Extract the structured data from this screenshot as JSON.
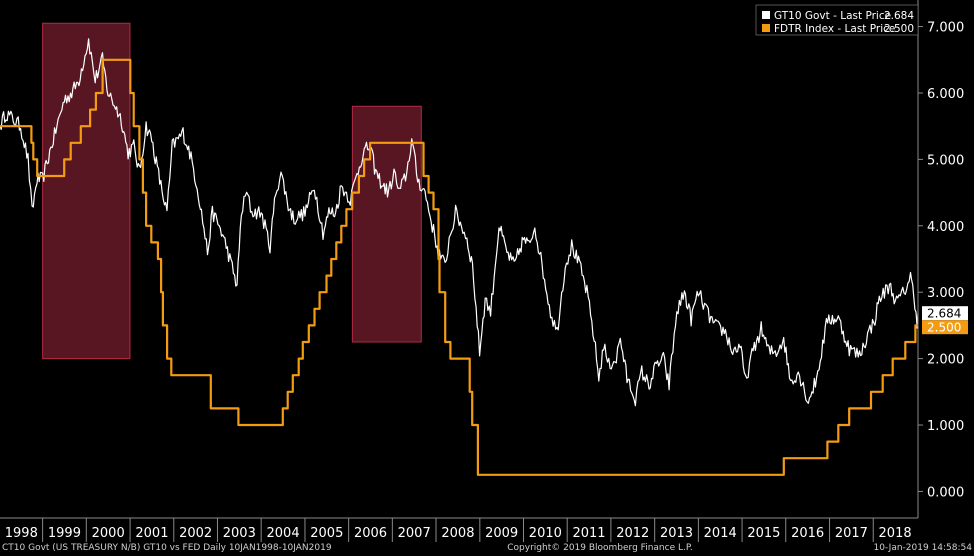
{
  "chart_data": {
    "type": "line",
    "title": "",
    "xlabel": "",
    "ylabel": "",
    "x_range": [
      "1998-01-10",
      "2019-01-10"
    ],
    "ylim": [
      -0.4,
      7.4
    ],
    "y_ticks": [
      "0.000",
      "1.000",
      "2.000",
      "3.000",
      "4.000",
      "5.000",
      "6.000",
      "7.000"
    ],
    "x_ticks": [
      "1998",
      "1999",
      "2000",
      "2001",
      "2002",
      "2003",
      "2004",
      "2005",
      "2006",
      "2007",
      "2008",
      "2009",
      "2010",
      "2011",
      "2012",
      "2013",
      "2014",
      "2015",
      "2016",
      "2017",
      "2018"
    ],
    "grid": false,
    "legend_position": "top-right",
    "background": "#000000",
    "series": [
      {
        "name": "GT10 Govt - Last Price",
        "last_value": "2.684",
        "color": "#ffffff",
        "points": [
          [
            "1998-01-10",
            5.5
          ],
          [
            "1998-03-01",
            5.7
          ],
          [
            "1998-05-01",
            5.6
          ],
          [
            "1998-07-01",
            5.5
          ],
          [
            "1998-09-01",
            5.0
          ],
          [
            "1998-10-05",
            4.2
          ],
          [
            "1998-11-15",
            4.7
          ],
          [
            "1999-01-01",
            4.7
          ],
          [
            "1999-03-01",
            5.1
          ],
          [
            "1999-05-01",
            5.5
          ],
          [
            "1999-07-01",
            5.9
          ],
          [
            "1999-09-01",
            6.0
          ],
          [
            "1999-11-01",
            6.2
          ],
          [
            "2000-01-20",
            6.8
          ],
          [
            "2000-03-15",
            6.2
          ],
          [
            "2000-05-15",
            6.5
          ],
          [
            "2000-07-01",
            6.0
          ],
          [
            "2000-09-01",
            5.8
          ],
          [
            "2000-10-20",
            5.6
          ],
          [
            "2000-12-15",
            5.1
          ],
          [
            "2001-02-01",
            5.2
          ],
          [
            "2001-03-20",
            4.8
          ],
          [
            "2001-05-15",
            5.5
          ],
          [
            "2001-07-01",
            5.3
          ],
          [
            "2001-09-15",
            4.6
          ],
          [
            "2001-11-05",
            4.2
          ],
          [
            "2001-12-20",
            5.2
          ],
          [
            "2002-03-20",
            5.4
          ],
          [
            "2002-05-15",
            5.1
          ],
          [
            "2002-07-15",
            4.6
          ],
          [
            "2002-08-20",
            4.2
          ],
          [
            "2002-10-10",
            3.6
          ],
          [
            "2002-11-20",
            4.2
          ],
          [
            "2003-01-15",
            4.0
          ],
          [
            "2003-03-15",
            3.7
          ],
          [
            "2003-06-13",
            3.1
          ],
          [
            "2003-07-20",
            4.2
          ],
          [
            "2003-09-01",
            4.5
          ],
          [
            "2003-10-15",
            4.2
          ],
          [
            "2004-01-01",
            4.2
          ],
          [
            "2004-03-15",
            3.7
          ],
          [
            "2004-05-01",
            4.5
          ],
          [
            "2004-06-15",
            4.8
          ],
          [
            "2004-08-15",
            4.3
          ],
          [
            "2004-10-01",
            4.1
          ],
          [
            "2005-01-01",
            4.2
          ],
          [
            "2005-03-20",
            4.6
          ],
          [
            "2005-06-01",
            3.9
          ],
          [
            "2005-07-20",
            4.2
          ],
          [
            "2005-09-15",
            4.2
          ],
          [
            "2005-11-01",
            4.6
          ],
          [
            "2006-01-15",
            4.4
          ],
          [
            "2006-03-01",
            4.7
          ],
          [
            "2006-05-01",
            5.1
          ],
          [
            "2006-06-28",
            5.2
          ],
          [
            "2006-08-15",
            4.8
          ],
          [
            "2006-10-15",
            4.6
          ],
          [
            "2006-12-01",
            4.5
          ],
          [
            "2007-01-15",
            4.8
          ],
          [
            "2007-03-01",
            4.5
          ],
          [
            "2007-05-01",
            4.8
          ],
          [
            "2007-06-12",
            5.3
          ],
          [
            "2007-08-01",
            4.7
          ],
          [
            "2007-10-01",
            4.5
          ],
          [
            "2007-12-01",
            4.0
          ],
          [
            "2008-01-20",
            3.6
          ],
          [
            "2008-03-17",
            3.4
          ],
          [
            "2008-04-20",
            3.8
          ],
          [
            "2008-06-13",
            4.2
          ],
          [
            "2008-08-01",
            4.0
          ],
          [
            "2008-09-15",
            3.8
          ],
          [
            "2008-11-01",
            3.4
          ],
          [
            "2008-12-30",
            2.1
          ],
          [
            "2009-02-15",
            2.9
          ],
          [
            "2009-04-01",
            2.7
          ],
          [
            "2009-06-10",
            4.0
          ],
          [
            "2009-08-15",
            3.6
          ],
          [
            "2009-10-15",
            3.4
          ],
          [
            "2009-12-31",
            3.8
          ],
          [
            "2010-02-15",
            3.7
          ],
          [
            "2010-04-05",
            4.0
          ],
          [
            "2010-06-15",
            3.3
          ],
          [
            "2010-08-15",
            2.7
          ],
          [
            "2010-10-08",
            2.4
          ],
          [
            "2010-12-15",
            3.4
          ],
          [
            "2011-02-08",
            3.7
          ],
          [
            "2011-04-15",
            3.4
          ],
          [
            "2011-06-15",
            3.0
          ],
          [
            "2011-08-15",
            2.3
          ],
          [
            "2011-09-22",
            1.7
          ],
          [
            "2011-11-01",
            2.2
          ],
          [
            "2011-12-15",
            1.9
          ],
          [
            "2012-02-15",
            2.0
          ],
          [
            "2012-03-20",
            2.3
          ],
          [
            "2012-05-15",
            1.7
          ],
          [
            "2012-07-24",
            1.4
          ],
          [
            "2012-09-15",
            1.8
          ],
          [
            "2012-11-15",
            1.6
          ],
          [
            "2013-01-15",
            1.9
          ],
          [
            "2013-03-15",
            2.0
          ],
          [
            "2013-05-01",
            1.6
          ],
          [
            "2013-07-05",
            2.7
          ],
          [
            "2013-09-06",
            3.0
          ],
          [
            "2013-11-01",
            2.6
          ],
          [
            "2013-12-31",
            3.0
          ],
          [
            "2014-03-15",
            2.7
          ],
          [
            "2014-05-15",
            2.5
          ],
          [
            "2014-08-15",
            2.4
          ],
          [
            "2014-10-15",
            2.1
          ],
          [
            "2014-12-15",
            2.2
          ],
          [
            "2015-01-30",
            1.65
          ],
          [
            "2015-03-15",
            2.0
          ],
          [
            "2015-06-10",
            2.45
          ],
          [
            "2015-08-15",
            2.1
          ],
          [
            "2015-10-15",
            2.1
          ],
          [
            "2015-12-15",
            2.3
          ],
          [
            "2016-02-11",
            1.65
          ],
          [
            "2016-04-15",
            1.8
          ],
          [
            "2016-07-08",
            1.36
          ],
          [
            "2016-09-15",
            1.7
          ],
          [
            "2016-11-15",
            2.3
          ],
          [
            "2016-12-16",
            2.6
          ],
          [
            "2017-03-15",
            2.6
          ],
          [
            "2017-06-15",
            2.15
          ],
          [
            "2017-09-08",
            2.05
          ],
          [
            "2017-11-15",
            2.35
          ],
          [
            "2018-01-15",
            2.6
          ],
          [
            "2018-02-21",
            2.9
          ],
          [
            "2018-05-17",
            3.1
          ],
          [
            "2018-07-15",
            2.85
          ],
          [
            "2018-09-15",
            3.0
          ],
          [
            "2018-11-08",
            3.24
          ],
          [
            "2018-12-15",
            2.85
          ],
          [
            "2019-01-03",
            2.56
          ],
          [
            "2019-01-10",
            2.684
          ]
        ]
      },
      {
        "name": "FDTR Index - Last Price",
        "last_value": "2.500",
        "color": "#f39c12",
        "points": [
          [
            "1998-01-10",
            5.5
          ],
          [
            "1998-09-29",
            5.25
          ],
          [
            "1998-10-15",
            5.0
          ],
          [
            "1998-11-17",
            4.75
          ],
          [
            "1999-06-30",
            5.0
          ],
          [
            "1999-08-24",
            5.25
          ],
          [
            "1999-11-16",
            5.5
          ],
          [
            "2000-02-02",
            5.75
          ],
          [
            "2000-03-21",
            6.0
          ],
          [
            "2000-05-16",
            6.5
          ],
          [
            "2001-01-03",
            6.0
          ],
          [
            "2001-01-31",
            5.5
          ],
          [
            "2001-03-20",
            5.0
          ],
          [
            "2001-04-18",
            4.5
          ],
          [
            "2001-05-15",
            4.0
          ],
          [
            "2001-06-27",
            3.75
          ],
          [
            "2001-08-21",
            3.5
          ],
          [
            "2001-09-17",
            3.0
          ],
          [
            "2001-10-02",
            2.5
          ],
          [
            "2001-11-06",
            2.0
          ],
          [
            "2001-12-11",
            1.75
          ],
          [
            "2002-11-06",
            1.25
          ],
          [
            "2003-06-25",
            1.0
          ],
          [
            "2004-06-30",
            1.25
          ],
          [
            "2004-08-10",
            1.5
          ],
          [
            "2004-09-21",
            1.75
          ],
          [
            "2004-11-10",
            2.0
          ],
          [
            "2004-12-14",
            2.25
          ],
          [
            "2005-02-02",
            2.5
          ],
          [
            "2005-03-22",
            2.75
          ],
          [
            "2005-05-03",
            3.0
          ],
          [
            "2005-06-30",
            3.25
          ],
          [
            "2005-08-09",
            3.5
          ],
          [
            "2005-09-20",
            3.75
          ],
          [
            "2005-11-01",
            4.0
          ],
          [
            "2005-12-13",
            4.25
          ],
          [
            "2006-01-31",
            4.5
          ],
          [
            "2006-03-28",
            4.75
          ],
          [
            "2006-05-10",
            5.0
          ],
          [
            "2006-06-29",
            5.25
          ],
          [
            "2007-09-18",
            4.75
          ],
          [
            "2007-10-31",
            4.5
          ],
          [
            "2007-12-11",
            4.25
          ],
          [
            "2008-01-22",
            3.5
          ],
          [
            "2008-01-30",
            3.0
          ],
          [
            "2008-03-18",
            2.25
          ],
          [
            "2008-04-30",
            2.0
          ],
          [
            "2008-10-08",
            1.5
          ],
          [
            "2008-10-29",
            1.0
          ],
          [
            "2008-12-16",
            0.25
          ],
          [
            "2015-12-16",
            0.5
          ],
          [
            "2016-12-14",
            0.75
          ],
          [
            "2017-03-15",
            1.0
          ],
          [
            "2017-06-14",
            1.25
          ],
          [
            "2017-12-13",
            1.5
          ],
          [
            "2018-03-21",
            1.75
          ],
          [
            "2018-06-13",
            2.0
          ],
          [
            "2018-09-26",
            2.25
          ],
          [
            "2018-12-19",
            2.5
          ],
          [
            "2019-01-10",
            2.5
          ]
        ]
      }
    ],
    "highlight_regions": [
      {
        "x": [
          "1999-01-01",
          "2000-12-31"
        ],
        "y": [
          2.0,
          7.05
        ],
        "color": "#c0304a"
      },
      {
        "x": [
          "2006-02-01",
          "2007-08-31"
        ],
        "y": [
          2.25,
          5.8
        ],
        "color": "#c0304a"
      }
    ]
  },
  "footer": {
    "left": "CT10 Govt (US TREASURY N/B) GT10 vs FED  Daily 10JAN1998-10JAN2019",
    "center": "Copyright© 2019 Bloomberg Finance L.P.",
    "right": "10-Jan-2019 14:58:54"
  }
}
